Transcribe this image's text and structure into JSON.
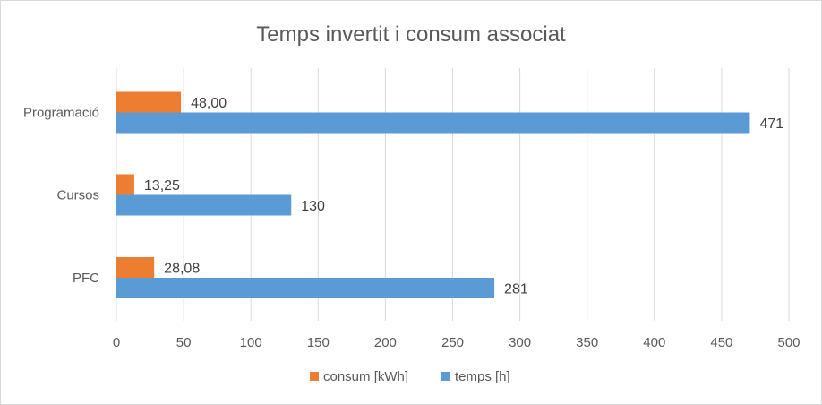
{
  "chart_data": {
    "type": "bar",
    "orientation": "horizontal",
    "title": "Temps invertit i consum associat",
    "categories": [
      "Programació",
      "Cursos",
      "PFC"
    ],
    "series": [
      {
        "name": "consum [kWh]",
        "color": "#ED7D31",
        "values": [
          48.0,
          13.25,
          28.08
        ],
        "labels": [
          "48,00",
          "13,25",
          "28,08"
        ]
      },
      {
        "name": "temps [h]",
        "color": "#5B9BD5",
        "values": [
          471,
          130,
          281
        ],
        "labels": [
          "471",
          "130",
          "281"
        ]
      }
    ],
    "xlim": [
      0,
      500
    ],
    "x_ticks": [
      "0",
      "50",
      "100",
      "150",
      "200",
      "250",
      "300",
      "350",
      "400",
      "450",
      "500"
    ],
    "xlabel": "",
    "ylabel": "",
    "grid": true,
    "legend_position": "bottom"
  }
}
